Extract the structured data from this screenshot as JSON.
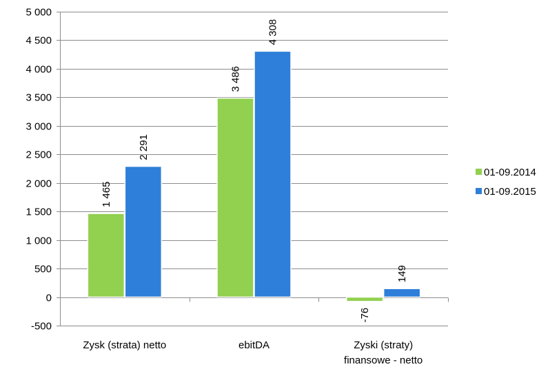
{
  "chart_data": {
    "type": "bar",
    "categories": [
      [
        "Zysk (strata) netto"
      ],
      [
        "ebitDA"
      ],
      [
        "Zyski (straty)",
        "finansowe - netto"
      ]
    ],
    "series": [
      {
        "name": "01-09.2014",
        "color": "#92d050",
        "values": [
          1465,
          3486,
          -76
        ],
        "labels": [
          "1 465",
          "3 486",
          "-76"
        ]
      },
      {
        "name": "01-09.2015",
        "color": "#2e7fd9",
        "values": [
          2291,
          4308,
          149
        ],
        "labels": [
          "2 291",
          "4 308",
          "149"
        ]
      }
    ],
    "ylim": [
      -500,
      5000
    ],
    "yticks": [
      -500,
      0,
      500,
      1000,
      1500,
      2000,
      2500,
      3000,
      3500,
      4000,
      4500,
      5000
    ],
    "ytick_labels": [
      "-500",
      "0",
      "500",
      "1 000",
      "1 500",
      "2 000",
      "2 500",
      "3 000",
      "3 500",
      "4 000",
      "4 500",
      "5 000"
    ],
    "grid": true,
    "legend_position": "right",
    "title": "",
    "xlabel": "",
    "ylabel": ""
  }
}
